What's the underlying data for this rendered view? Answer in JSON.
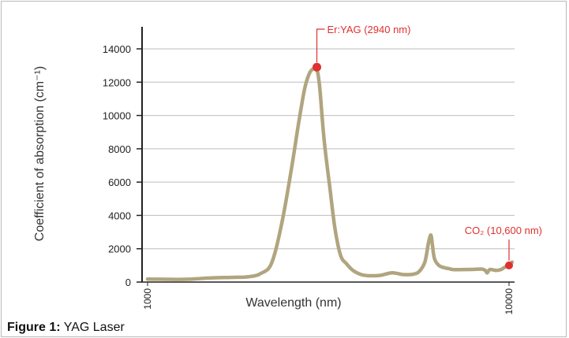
{
  "chart_data": {
    "type": "line",
    "title": "",
    "xlabel": "Wavelength (nm)",
    "ylabel": "Coefficient of absorption (cm⁻¹)",
    "x_scale": "log",
    "xlim": [
      1000,
      10000
    ],
    "ylim": [
      0,
      14000
    ],
    "grid": true,
    "x_ticks": [
      "1000",
      "10000"
    ],
    "y_ticks": [
      "0",
      "2000",
      "4000",
      "6000",
      "8000",
      "10000",
      "12000",
      "14000"
    ],
    "series": [
      {
        "color": "#b0a57e",
        "x": [
          1000,
          1080,
          1200,
          1300,
          1500,
          1700,
          1850,
          1950,
          2050,
          2200,
          2350,
          2500,
          2620,
          2720,
          2800,
          2870,
          2920,
          2940,
          2960,
          3000,
          3080,
          3200,
          3300,
          3420,
          3550,
          3700,
          3900,
          4100,
          4400,
          4750,
          5100,
          5450,
          5650,
          5850,
          5980,
          6060,
          6100,
          6140,
          6220,
          6400,
          6650,
          6850,
          7000,
          7500,
          8000,
          8400,
          8600,
          8700,
          8850,
          9200,
          9500,
          9750,
          9950,
          10050,
          10200
        ],
        "y": [
          180,
          170,
          160,
          170,
          250,
          280,
          300,
          350,
          500,
          1100,
          3500,
          6800,
          9600,
          11600,
          12500,
          12800,
          12750,
          12700,
          12500,
          11500,
          8500,
          5500,
          3200,
          1600,
          1100,
          700,
          450,
          380,
          400,
          560,
          450,
          480,
          650,
          1200,
          2300,
          2800,
          2700,
          2200,
          1400,
          1000,
          850,
          800,
          750,
          750,
          760,
          780,
          700,
          550,
          750,
          700,
          750,
          900,
          950,
          1000,
          1200
        ]
      }
    ],
    "annotations": [
      {
        "label": "Er:YAG (2940 nm)",
        "x": 2940,
        "y": 12900,
        "color": "#e03030"
      },
      {
        "label": "CO₂ (10,600 nm)",
        "x": 10000,
        "y": 1000,
        "color": "#e03030"
      }
    ]
  },
  "caption": {
    "label": "Figure 1:",
    "text": " YAG Laser"
  }
}
